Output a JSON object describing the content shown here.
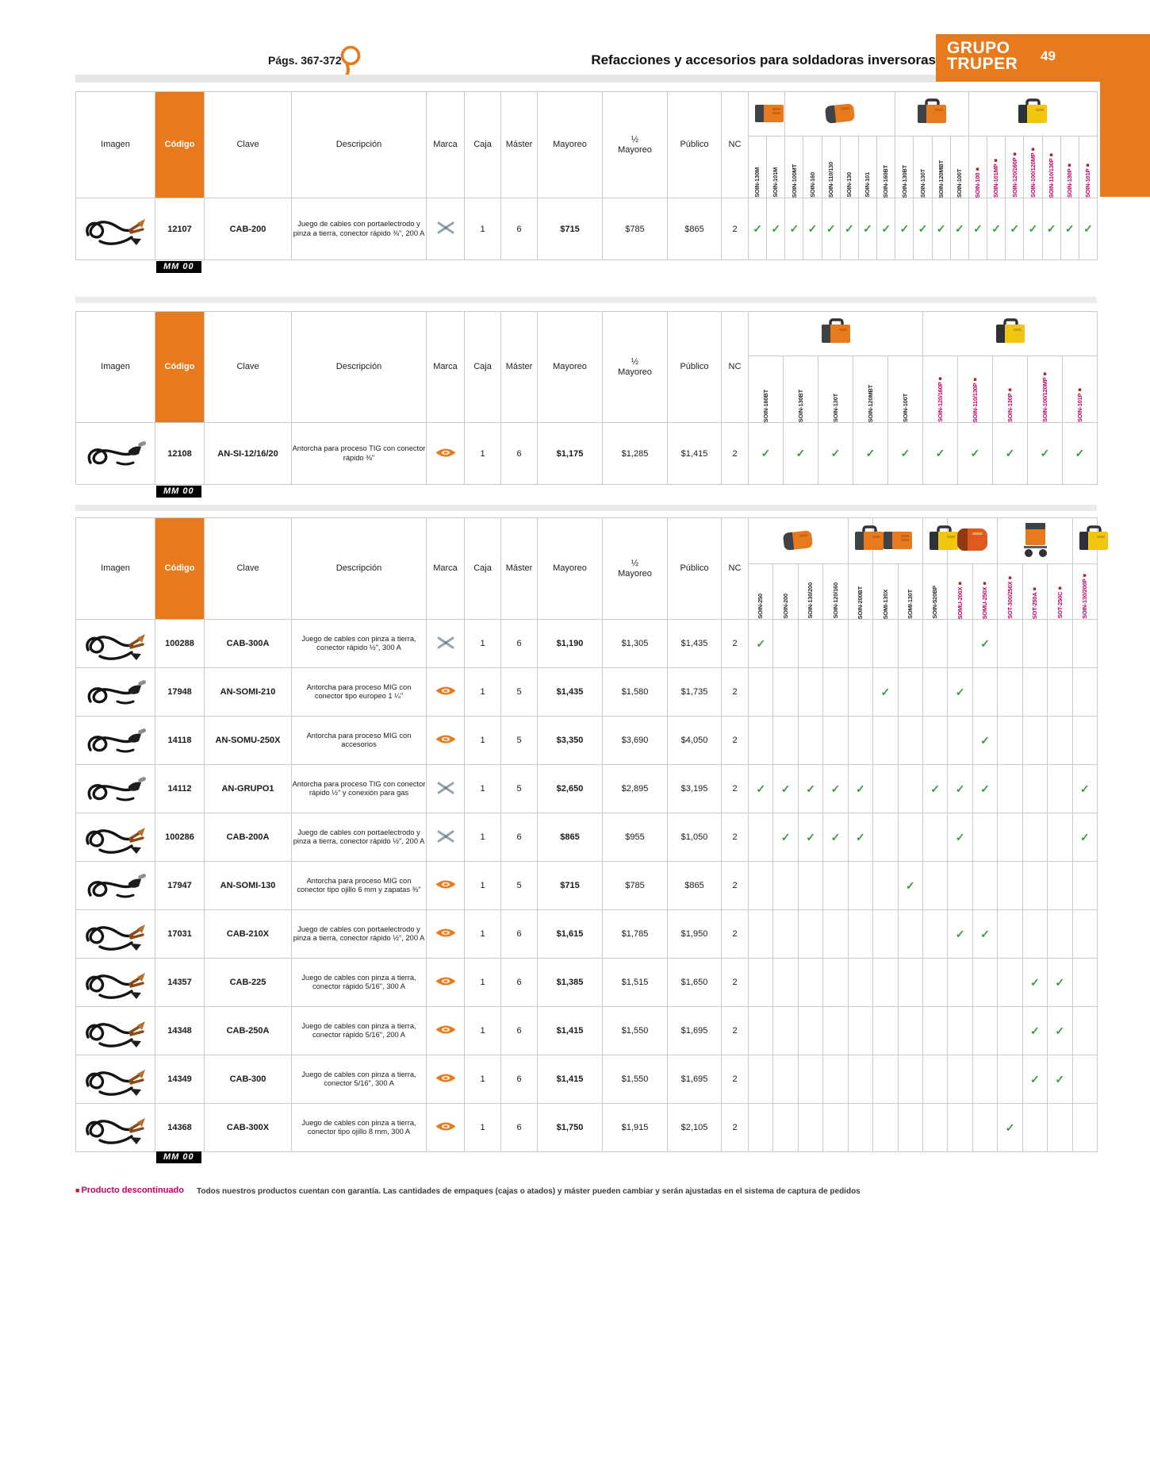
{
  "page": {
    "pages_label": "Págs. 367-372",
    "section_title": "Refacciones y accesorios para soldadoras inversoras",
    "brand_line1": "GRUPO",
    "brand_line2": "TRUPER",
    "page_number": "49"
  },
  "colors": {
    "accent_orange": "#E87A1E",
    "discontinued_magenta": "#C4006A",
    "discontinued_square_red": "#B01F24",
    "check_green": "#3A9B41"
  },
  "icons": {
    "compat_check": "✓",
    "discontinued_square": "■",
    "magnifier": "magnifier-icon"
  },
  "base_headers": [
    "Imagen",
    "Código",
    "Clave",
    "Descripción",
    "Marca",
    "Caja",
    "Máster",
    "Mayoreo",
    "½|Mayoreo",
    "Público",
    "NC"
  ],
  "tables": [
    {
      "groups": [
        {
          "span": 2,
          "img": "inv-flat"
        },
        {
          "span": 6,
          "img": "inv-round"
        },
        {
          "span": 4,
          "img": "inv-handle"
        },
        {
          "span": 7,
          "img": "inv-yellow"
        }
      ],
      "models": [
        {
          "label": "SOIN-130M"
        },
        {
          "label": "SOIN-101M"
        },
        {
          "label": "SOIN-100MT"
        },
        {
          "label": "SOIN-160"
        },
        {
          "label": "SOIN-110/130"
        },
        {
          "label": "SOIN-130"
        },
        {
          "label": "SOIN-101"
        },
        {
          "label": "SOIN-160BT"
        },
        {
          "label": "SOIN-130BT"
        },
        {
          "label": "SOIN-130T"
        },
        {
          "label": "SOIN-120MBT"
        },
        {
          "label": "SOIN-100T"
        },
        {
          "label": "SOIN-100",
          "disc": true
        },
        {
          "label": "SOIN-101MP",
          "disc": true
        },
        {
          "label": "SOIN-120/160P",
          "disc": true
        },
        {
          "label": "SOIN-100/120MP",
          "disc": true
        },
        {
          "label": "SOIN-110/130P",
          "disc": true
        },
        {
          "label": "SOIN-130P",
          "disc": true
        },
        {
          "label": "SOIN-101P",
          "disc": true
        }
      ],
      "rows": [
        {
          "photo": "cables",
          "codigo": "12107",
          "clave": "CAB-200",
          "descripcion": "Juego de cables con portaelectrodo y pinza a tierra, conector rápido ⅜\", 200 A",
          "marca": "gray",
          "caja": "1",
          "master": "6",
          "mayoreo": "$715",
          "medio": "$785",
          "publico": "$865",
          "nc": "2",
          "checks": [
            1,
            1,
            1,
            1,
            1,
            1,
            1,
            1,
            1,
            1,
            1,
            1,
            1,
            1,
            1,
            1,
            1,
            1,
            1
          ]
        }
      ],
      "stamp": "MM 00"
    },
    {
      "groups": [
        {
          "span": 5,
          "img": "inv-handle"
        },
        {
          "span": 5,
          "img": "inv-yellow"
        }
      ],
      "models": [
        {
          "label": "SOIN-160BT"
        },
        {
          "label": "SOIN-130BT"
        },
        {
          "label": "SOIN-130T"
        },
        {
          "label": "SOIN-120MBT"
        },
        {
          "label": "SOIN-100T"
        },
        {
          "label": "SOIN-120/160P",
          "disc": true
        },
        {
          "label": "SOIN-110/130P",
          "disc": true
        },
        {
          "label": "SOIN-130P",
          "disc": true
        },
        {
          "label": "SOIN-100/120MP",
          "disc": true
        },
        {
          "label": "SOIN-101P",
          "disc": true
        }
      ],
      "rows": [
        {
          "photo": "torch",
          "codigo": "12108",
          "clave": "AN-SI-12/16/20",
          "descripcion": "Antorcha para proceso TIG con conector rápido ⅜\"",
          "marca": "orange",
          "caja": "1",
          "master": "6",
          "mayoreo": "$1,175",
          "medio": "$1,285",
          "publico": "$1,415",
          "nc": "2",
          "checks": [
            1,
            1,
            1,
            1,
            1,
            1,
            1,
            1,
            1,
            1
          ]
        }
      ],
      "stamp": "MM 00"
    },
    {
      "groups": [
        {
          "span": 4,
          "img": "inv-round"
        },
        {
          "span": 1,
          "img": "inv-handle"
        },
        {
          "span": 2,
          "img": "inv-flat"
        },
        {
          "span": 1,
          "img": "inv-yellow"
        },
        {
          "span": 2,
          "img": "mig-round"
        },
        {
          "span": 3,
          "img": "trolley"
        },
        {
          "span": 1,
          "img": "inv-yellow"
        }
      ],
      "models": [
        {
          "label": "SOIN-250"
        },
        {
          "label": "SOIN-200"
        },
        {
          "label": "SOIN-130/200"
        },
        {
          "label": "SOIN-120/160"
        },
        {
          "label": "SOIN-200BT"
        },
        {
          "label": "SOMI-130X"
        },
        {
          "label": "SOMI-130T"
        },
        {
          "label": "SOIN-520BP"
        },
        {
          "label": "SOMU-200X",
          "disc": true
        },
        {
          "label": "SOMU-250X",
          "disc": true
        },
        {
          "label": "SOT-300/250X",
          "disc": true
        },
        {
          "label": "SOT-250A",
          "disc": true
        },
        {
          "label": "SOT-250C",
          "disc": true
        },
        {
          "label": "SOIN-130/200P",
          "disc": true
        }
      ],
      "rows": [
        {
          "photo": "cables",
          "codigo": "100288",
          "clave": "CAB-300A",
          "descripcion": "Juego de cables con pinza a tierra, conector rápido ½\", 300 A",
          "marca": "gray",
          "caja": "1",
          "master": "6",
          "mayoreo": "$1,190",
          "medio": "$1,305",
          "publico": "$1,435",
          "nc": "2",
          "checks": [
            1,
            0,
            0,
            0,
            0,
            0,
            0,
            0,
            0,
            1,
            0,
            0,
            0,
            0
          ]
        },
        {
          "photo": "torch",
          "codigo": "17948",
          "clave": "AN-SOMI-210",
          "descripcion": "Antorcha para proceso MIG con conector tipo europeo 1 ¼\"",
          "marca": "orange",
          "caja": "1",
          "master": "5",
          "mayoreo": "$1,435",
          "medio": "$1,580",
          "publico": "$1,735",
          "nc": "2",
          "checks": [
            0,
            0,
            0,
            0,
            0,
            1,
            0,
            0,
            1,
            0,
            0,
            0,
            0,
            0
          ]
        },
        {
          "photo": "torch",
          "codigo": "14118",
          "clave": "AN-SOMU-250X",
          "descripcion": "Antorcha para proceso MIG con accesorios",
          "marca": "orange",
          "caja": "1",
          "master": "5",
          "mayoreo": "$3,350",
          "medio": "$3,690",
          "publico": "$4,050",
          "nc": "2",
          "checks": [
            0,
            0,
            0,
            0,
            0,
            0,
            0,
            0,
            0,
            1,
            0,
            0,
            0,
            0
          ]
        },
        {
          "photo": "torch",
          "codigo": "14112",
          "clave": "AN-GRUPO1",
          "descripcion": "Antorcha para proceso TIG con conector rápido ½\" y conexión para gas",
          "marca": "gray",
          "caja": "1",
          "master": "5",
          "mayoreo": "$2,650",
          "medio": "$2,895",
          "publico": "$3,195",
          "nc": "2",
          "checks": [
            1,
            1,
            1,
            1,
            1,
            0,
            0,
            1,
            1,
            1,
            0,
            0,
            0,
            1
          ]
        },
        {
          "photo": "cables",
          "codigo": "100286",
          "clave": "CAB-200A",
          "descripcion": "Juego de cables con portaelectrodo y pinza a tierra, conector rápido ½\", 200 A",
          "marca": "gray",
          "caja": "1",
          "master": "6",
          "mayoreo": "$865",
          "medio": "$955",
          "publico": "$1,050",
          "nc": "2",
          "checks": [
            0,
            1,
            1,
            1,
            1,
            0,
            0,
            0,
            1,
            0,
            0,
            0,
            0,
            1
          ]
        },
        {
          "photo": "torch",
          "codigo": "17947",
          "clave": "AN-SOMI-130",
          "descripcion": "Antorcha para proceso MIG con conector tipo ojillo 6 mm y zapatas ⅜\"",
          "marca": "orange",
          "caja": "1",
          "master": "5",
          "mayoreo": "$715",
          "medio": "$785",
          "publico": "$865",
          "nc": "2",
          "checks": [
            0,
            0,
            0,
            0,
            0,
            0,
            1,
            0,
            0,
            0,
            0,
            0,
            0,
            0
          ]
        },
        {
          "photo": "cables",
          "codigo": "17031",
          "clave": "CAB-210X",
          "descripcion": "Juego de cables con portaelectrodo y pinza a tierra, conector rápido ½\", 200 A",
          "marca": "orange",
          "caja": "1",
          "master": "6",
          "mayoreo": "$1,615",
          "medio": "$1,785",
          "publico": "$1,950",
          "nc": "2",
          "checks": [
            0,
            0,
            0,
            0,
            0,
            0,
            0,
            0,
            1,
            1,
            0,
            0,
            0,
            0
          ]
        },
        {
          "photo": "cables",
          "codigo": "14357",
          "clave": "CAB-225",
          "descripcion": "Juego de cables con pinza a tierra, conector rápido 5/16\", 300 A",
          "marca": "orange",
          "caja": "1",
          "master": "6",
          "mayoreo": "$1,385",
          "medio": "$1,515",
          "publico": "$1,650",
          "nc": "2",
          "checks": [
            0,
            0,
            0,
            0,
            0,
            0,
            0,
            0,
            0,
            0,
            0,
            1,
            1,
            0
          ]
        },
        {
          "photo": "cables",
          "codigo": "14348",
          "clave": "CAB-250A",
          "descripcion": "Juego de cables con pinza a tierra, conector rápido 5/16\", 200 A",
          "marca": "orange",
          "caja": "1",
          "master": "6",
          "mayoreo": "$1,415",
          "medio": "$1,550",
          "publico": "$1,695",
          "nc": "2",
          "checks": [
            0,
            0,
            0,
            0,
            0,
            0,
            0,
            0,
            0,
            0,
            0,
            1,
            1,
            0
          ]
        },
        {
          "photo": "cables",
          "codigo": "14349",
          "clave": "CAB-300",
          "descripcion": "Juego de cables con pinza a tierra, conector 5/16\", 300 A",
          "marca": "orange",
          "caja": "1",
          "master": "6",
          "mayoreo": "$1,415",
          "medio": "$1,550",
          "publico": "$1,695",
          "nc": "2",
          "checks": [
            0,
            0,
            0,
            0,
            0,
            0,
            0,
            0,
            0,
            0,
            0,
            1,
            1,
            0
          ]
        },
        {
          "photo": "cables",
          "codigo": "14368",
          "clave": "CAB-300X",
          "descripcion": "Juego de cables con pinza a tierra, conector tipo ojillo 8 mm, 300 A",
          "marca": "orange",
          "caja": "1",
          "master": "6",
          "mayoreo": "$1,750",
          "medio": "$1,915",
          "publico": "$2,105",
          "nc": "2",
          "checks": [
            0,
            0,
            0,
            0,
            0,
            0,
            0,
            0,
            0,
            0,
            1,
            0,
            0,
            0
          ]
        }
      ],
      "stamp": "MM 00"
    }
  ],
  "footer": {
    "discontinued_label": "Producto descontinuado",
    "note": "Todos nuestros productos cuentan con garantía. Las cantidades de empaques (cajas o atados) y máster pueden cambiar y serán ajustadas en el sistema de captura de pedidos"
  }
}
